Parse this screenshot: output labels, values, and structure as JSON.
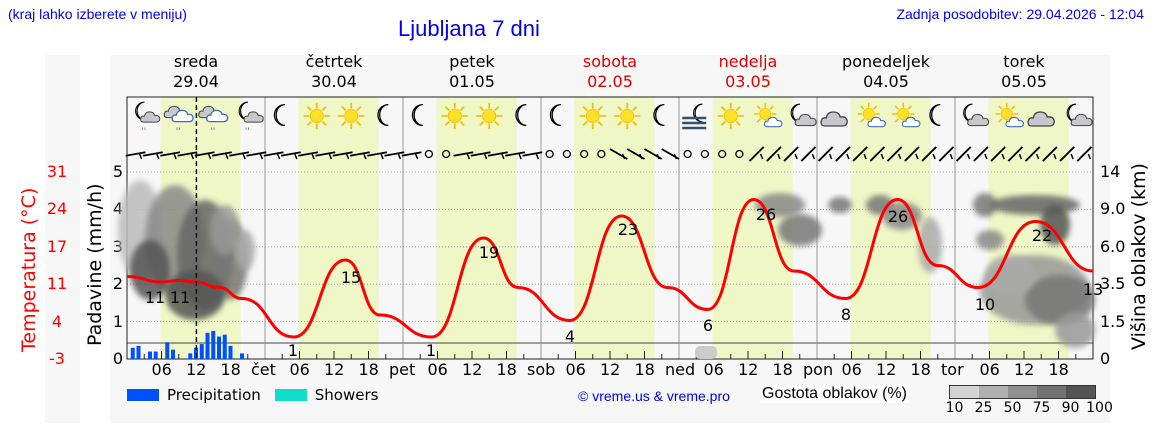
{
  "header": {
    "hint": "(kraj lahko izberete v meniju)",
    "title": "Ljubljana 7 dni",
    "updated": "Zadnja posodobitev: 29.04.2026 - 12:04"
  },
  "days": [
    {
      "name": "sreda",
      "date": "29.04",
      "weekend": false,
      "short": ""
    },
    {
      "name": "četrtek",
      "date": "30.04",
      "weekend": false,
      "short": "čet"
    },
    {
      "name": "petek",
      "date": "01.05",
      "weekend": false,
      "short": "pet"
    },
    {
      "name": "sobota",
      "date": "02.05",
      "weekend": true,
      "short": "sob"
    },
    {
      "name": "nedelja",
      "date": "03.05",
      "weekend": true,
      "short": "ned"
    },
    {
      "name": "ponedeljek",
      "date": "04.05",
      "weekend": false,
      "short": "pon"
    },
    {
      "name": "torek",
      "date": "05.05",
      "weekend": false,
      "short": "tor"
    }
  ],
  "weather_icons": [
    [
      "moon-cloud-rain-icon",
      "cloud-rain-icon",
      "cloud-rain-icon",
      "moon-cloud-rain-icon"
    ],
    [
      "moon-icon",
      "sun-icon",
      "sun-icon",
      "moon-icon"
    ],
    [
      "moon-icon",
      "sun-icon",
      "sun-icon",
      "moon-icon"
    ],
    [
      "moon-icon",
      "sun-icon",
      "sun-icon",
      "moon-icon"
    ],
    [
      "moon-fog-icon",
      "sun-icon",
      "sun-cloud-icon",
      "moon-cloud-icon"
    ],
    [
      "cloud-icon",
      "sun-cloud-icon",
      "sun-cloud-icon",
      "moon-icon"
    ],
    [
      "moon-cloud-icon",
      "sun-cloud-icon",
      "cloud-icon",
      "moon-cloud-icon"
    ]
  ],
  "axes": {
    "left_label": "Padavine (mm/h)",
    "temp_label": "Temperatura (°C)",
    "right_label": "Višina oblakov (km)",
    "precip_ticks": [
      "5",
      "4",
      "3",
      "2",
      "1",
      "0"
    ],
    "temp_ticks": [
      "31",
      "24",
      "17",
      "11",
      "4",
      "-3"
    ],
    "height_ticks": [
      "14",
      "9.0",
      "6.0",
      "3.5",
      "1.5",
      "0"
    ],
    "x_hour_labels": [
      "06",
      "12",
      "18"
    ]
  },
  "legend": {
    "precip_label": "Precipitation",
    "precip_color": "#0050ff",
    "showers_label": "Showers",
    "showers_color": "#10ddcc",
    "copyright": "© vreme.us & vreme.pro",
    "cloud_density_label": "Gostota oblakov (%)",
    "cloud_scale": [
      "10",
      "25",
      "50",
      "75",
      "90",
      "100"
    ],
    "cloud_colors": [
      "#d4d4d4",
      "#b0b0b0",
      "#909090",
      "#727272",
      "#555555"
    ]
  },
  "colors": {
    "temperature": "#ff0000",
    "daylight": "#eff7c6",
    "weekend_text": "#dd0000"
  },
  "chart_data": {
    "type": "line",
    "title": "Ljubljana 7 dni",
    "x_range": [
      "29.04 00:00",
      "05.05 24:00"
    ],
    "series": [
      {
        "name": "Temperatura (°C)",
        "type": "line",
        "points": [
          {
            "t": "29.04 00:00",
            "v": 12
          },
          {
            "t": "29.04 06:00",
            "v": 11
          },
          {
            "t": "29.04 09:00",
            "v": 11.3
          },
          {
            "t": "29.04 12:00",
            "v": 11
          },
          {
            "t": "29.04 16:00",
            "v": 10
          },
          {
            "t": "29.04 20:00",
            "v": 8
          },
          {
            "t": "30.04 05:00",
            "v": 1
          },
          {
            "t": "30.04 14:00",
            "v": 15
          },
          {
            "t": "30.04 20:00",
            "v": 5
          },
          {
            "t": "01.05 05:00",
            "v": 1
          },
          {
            "t": "01.05 14:00",
            "v": 19
          },
          {
            "t": "01.05 20:00",
            "v": 10
          },
          {
            "t": "02.05 05:00",
            "v": 4
          },
          {
            "t": "02.05 14:00",
            "v": 23
          },
          {
            "t": "02.05 22:00",
            "v": 10
          },
          {
            "t": "03.05 05:00",
            "v": 6
          },
          {
            "t": "03.05 13:00",
            "v": 26
          },
          {
            "t": "03.05 20:00",
            "v": 13
          },
          {
            "t": "04.05 05:00",
            "v": 8
          },
          {
            "t": "04.05 14:00",
            "v": 26
          },
          {
            "t": "04.05 21:00",
            "v": 14
          },
          {
            "t": "05.05 04:00",
            "v": 10
          },
          {
            "t": "05.05 14:00",
            "v": 22
          },
          {
            "t": "05.05 24:00",
            "v": 13
          }
        ]
      },
      {
        "name": "Precipitation (mm/h)",
        "type": "bar",
        "points": [
          {
            "t": "29.04 01:00",
            "v": 0.3
          },
          {
            "t": "29.04 02:00",
            "v": 0.35
          },
          {
            "t": "29.04 04:00",
            "v": 0.2
          },
          {
            "t": "29.04 05:00",
            "v": 0.2
          },
          {
            "t": "29.04 07:00",
            "v": 0.45
          },
          {
            "t": "29.04 08:00",
            "v": 0.25
          },
          {
            "t": "29.04 11:00",
            "v": 0.15
          },
          {
            "t": "29.04 12:00",
            "v": 0.3
          },
          {
            "t": "29.04 13:00",
            "v": 0.4
          },
          {
            "t": "29.04 14:00",
            "v": 0.7
          },
          {
            "t": "29.04 15:00",
            "v": 0.75
          },
          {
            "t": "29.04 16:00",
            "v": 0.6
          },
          {
            "t": "29.04 17:00",
            "v": 0.65
          },
          {
            "t": "29.04 18:00",
            "v": 0.35
          },
          {
            "t": "29.04 20:00",
            "v": 0.15
          }
        ]
      }
    ],
    "temp_labels": [
      {
        "day": "29.04",
        "min": 11,
        "max": 11
      },
      {
        "day": "30.04",
        "min": 1,
        "max": 15
      },
      {
        "day": "01.05",
        "min": 1,
        "max": 19
      },
      {
        "day": "02.05",
        "min": 4,
        "max": 23
      },
      {
        "day": "03.05",
        "min": 6,
        "max": 26
      },
      {
        "day": "04.05",
        "min": 8,
        "max": 26
      },
      {
        "day": "05.05",
        "min": 10,
        "max": 22,
        "end": 13
      }
    ],
    "xlabel": "",
    "ylabel": "Padavine (mm/h)",
    "ylim": [
      0,
      5
    ],
    "y2label": "Temperatura (°C)",
    "y2lim": [
      -3,
      31
    ],
    "y3label": "Višina oblakov (km)",
    "y3ticks": [
      0,
      1.5,
      3.5,
      6.0,
      9.0,
      14
    ],
    "now_marker": "29.04 12:04",
    "grid": true,
    "legend_position": "bottom"
  }
}
